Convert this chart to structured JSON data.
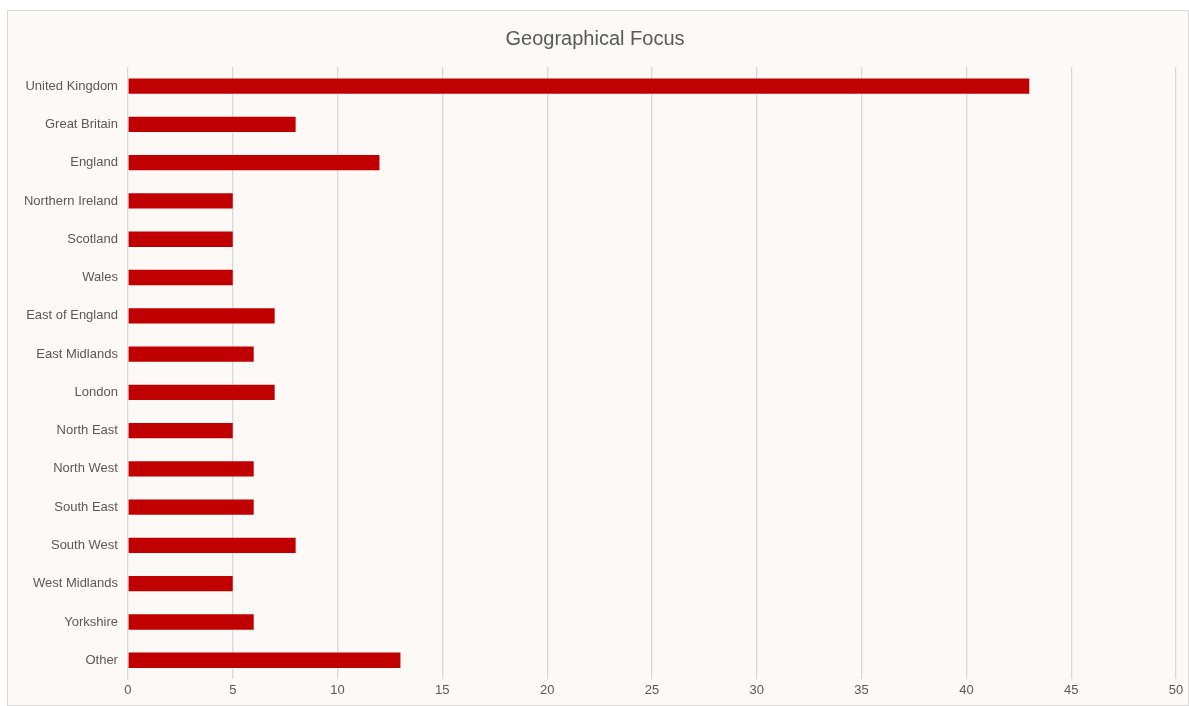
{
  "chart_data": {
    "type": "bar",
    "title": "Geographical Focus",
    "orientation": "horizontal",
    "categories": [
      "United Kingdom",
      "Great Britain",
      "England",
      "Northern Ireland",
      "Scotland",
      "Wales",
      "East of England",
      "East Midlands",
      "London",
      "North East",
      "North West",
      "South East",
      "South West",
      "West Midlands",
      "Yorkshire",
      "Other"
    ],
    "values": [
      43,
      8,
      12,
      5,
      5,
      5,
      7,
      6,
      7,
      5,
      6,
      6,
      8,
      5,
      6,
      13
    ],
    "color": "#c00000",
    "xlim": [
      0,
      50
    ],
    "xticks": [
      0,
      5,
      10,
      15,
      20,
      25,
      30,
      35,
      40,
      45,
      50
    ],
    "grid": "x",
    "legend": false
  }
}
